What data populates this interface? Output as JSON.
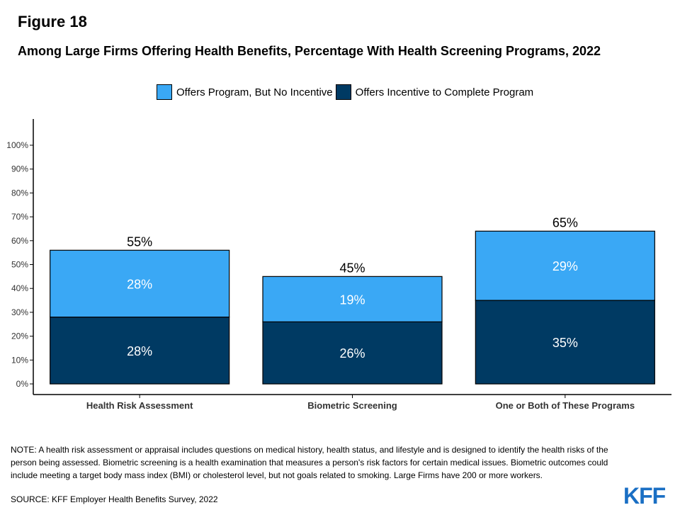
{
  "figure_label": "Figure 18",
  "note": "NOTE: A health risk assessment or appraisal includes questions on medical history, health status, and lifestyle and is designed to identify the health risks of the person being assessed.  Biometric screening is a health examination that measures a person's risk factors for certain medical issues. Biometric outcomes could include meeting a target body mass index (BMI) or cholesterol level, but not goals related to smoking.  Large Firms have 200 or more workers.",
  "source": "SOURCE: KFF Employer Health Benefits Survey, 2022",
  "logo": "KFF",
  "colors": {
    "light": "#3aa8f5",
    "dark": "#003a63"
  },
  "chart_data": {
    "type": "bar",
    "stacked": true,
    "title": "Among Large Firms Offering Health Benefits, Percentage With Health Screening Programs, 2022",
    "categories": [
      "Health Risk Assessment",
      "Biometric Screening",
      "One or Both of These Programs"
    ],
    "series": [
      {
        "name": "Offers Incentive to Complete Program",
        "values": [
          28,
          26,
          35
        ],
        "labels": [
          "28%",
          "26%",
          "35%"
        ],
        "color": "#003a63"
      },
      {
        "name": "Offers Program, But No Incentive",
        "values": [
          28,
          19,
          29
        ],
        "labels": [
          "28%",
          "19%",
          "29%"
        ],
        "color": "#3aa8f5"
      }
    ],
    "totals": [
      55,
      45,
      65
    ],
    "total_labels": [
      "55%",
      "45%",
      "65%"
    ],
    "yticks": [
      "0%",
      "10%",
      "20%",
      "30%",
      "40%",
      "50%",
      "60%",
      "70%",
      "80%",
      "90%",
      "100%"
    ],
    "ylim": [
      0,
      100
    ],
    "legend_order": [
      "Offers Program, But No Incentive",
      "Offers Incentive to Complete Program"
    ],
    "legend_position": "top",
    "grid": false
  }
}
